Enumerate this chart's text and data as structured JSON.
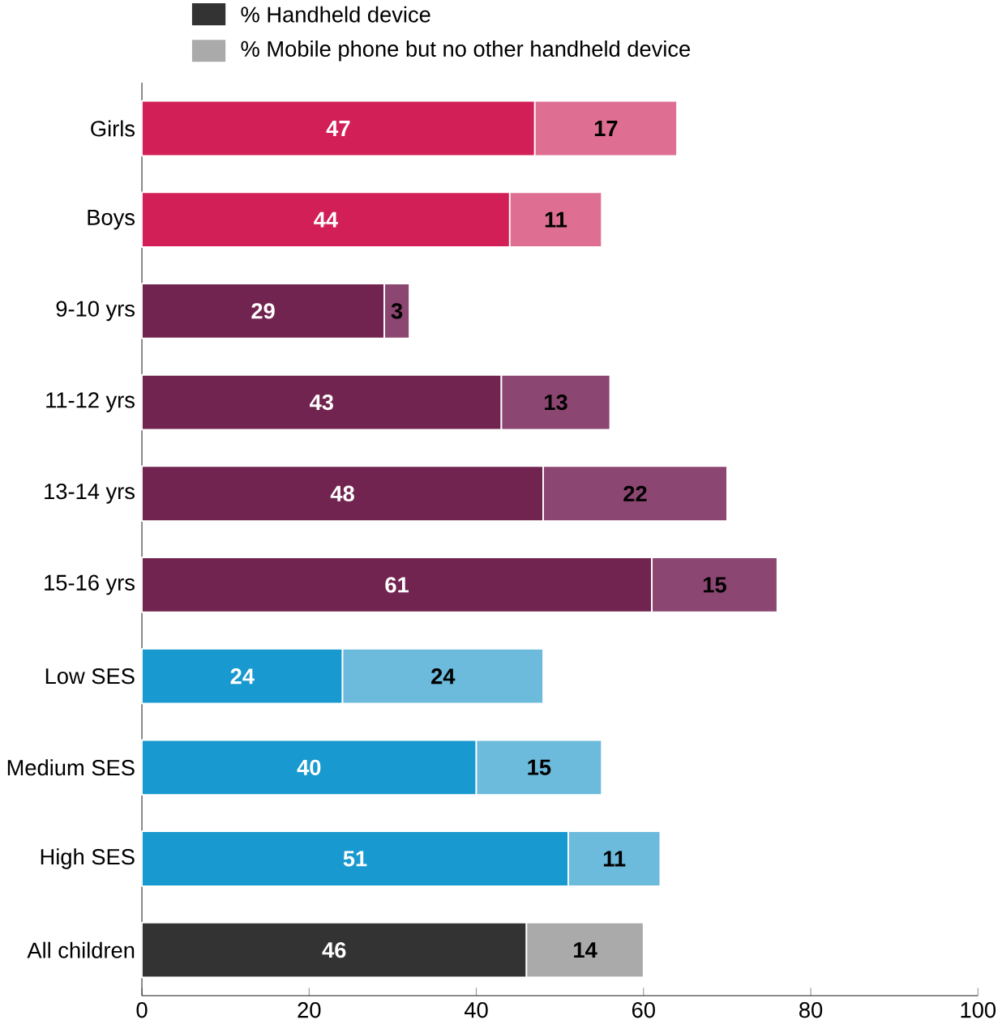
{
  "chart_data": {
    "type": "bar",
    "orientation": "horizontal",
    "stacked": true,
    "data_labels": true,
    "legend": "top",
    "grid": false,
    "categories": [
      "Girls",
      "Boys",
      "9-10 yrs",
      "11-12 yrs",
      "13-14 yrs",
      "15-16 yrs",
      "Low  SES",
      "Medium SES",
      "High SES",
      "All children"
    ],
    "series": [
      {
        "name": "% Handheld device",
        "color": "#333333",
        "colors": [
          "#d21f58",
          "#d21f58",
          "#71244f",
          "#71244f",
          "#71244f",
          "#71244f",
          "#1899cf",
          "#1899cf",
          "#1899cf",
          "#333333"
        ],
        "values": [
          47,
          44,
          29,
          43,
          48,
          61,
          24,
          40,
          51,
          46
        ]
      },
      {
        "name": "% Mobile phone but no other handheld device",
        "color": "#aaaaaa",
        "colors": [
          "#df6f92",
          "#df6f92",
          "#8c4672",
          "#8c4672",
          "#8c4672",
          "#8c4672",
          "#6cbadc",
          "#6cbadc",
          "#6cbadc",
          "#aaaaaa"
        ],
        "values": [
          17,
          11,
          3,
          13,
          22,
          15,
          24,
          15,
          11,
          14
        ]
      }
    ],
    "xlim": [
      0,
      100
    ],
    "xticks": [
      0,
      20,
      40,
      60,
      80,
      100
    ]
  }
}
